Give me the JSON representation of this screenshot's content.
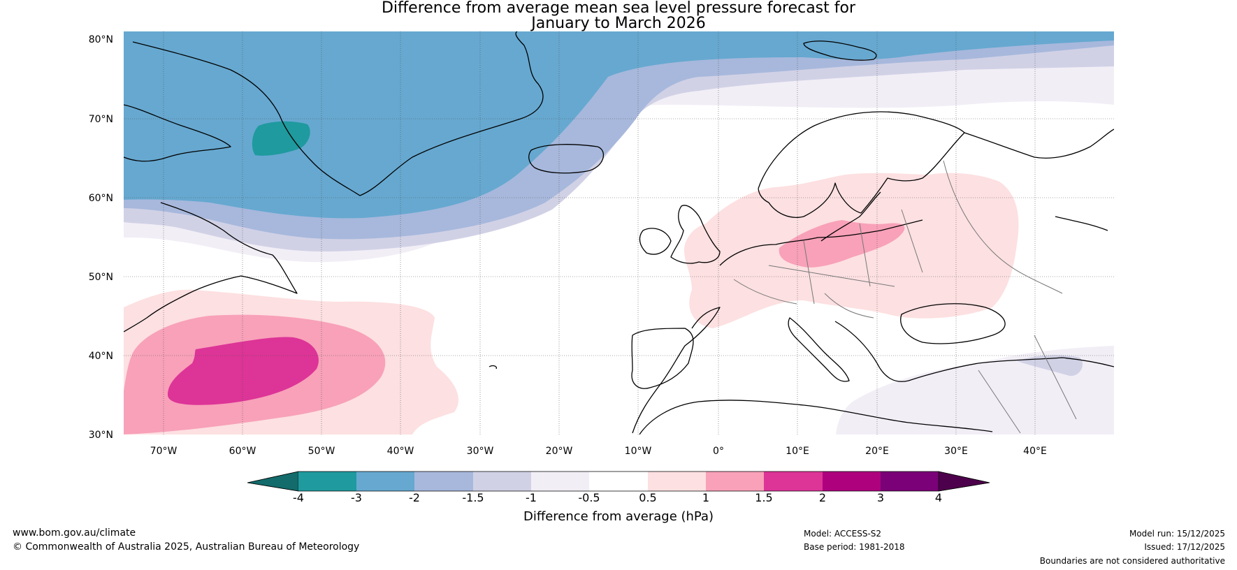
{
  "title_line1": "Difference from average mean sea level pressure forecast for",
  "title_line2": "January to March 2026",
  "lat_labels": [
    "30°N",
    "40°N",
    "50°N",
    "60°N",
    "70°N",
    "80°N"
  ],
  "lon_labels": [
    "70°W",
    "60°W",
    "50°W",
    "40°W",
    "30°W",
    "20°W",
    "10°W",
    "0°",
    "10°E",
    "20°E",
    "30°E",
    "40°E"
  ],
  "colorbar": {
    "label": "Difference from average (hPa)",
    "ticks": [
      "-4",
      "-3",
      "-2",
      "-1.5",
      "-1",
      "-0.5",
      "0.5",
      "1",
      "1.5",
      "2",
      "3",
      "4"
    ],
    "colors": [
      "#136b6b",
      "#1f9a9e",
      "#66a8d0",
      "#a7b8dc",
      "#d1d1e6",
      "#f2eef6",
      "#ffffff",
      "#fde0e1",
      "#f8a1b9",
      "#dd3497",
      "#ae017e",
      "#7a0177",
      "#4d004b"
    ]
  },
  "footer": {
    "website": "www.bom.gov.au/climate",
    "copyright": "© Commonwealth of Australia 2025, Australian Bureau of Meteorology",
    "model": "Model: ACCESS-S2",
    "base_period": "Base period: 1981-2018",
    "model_run": "Model run: 15/12/2025",
    "issued": "Issued: 17/12/2025",
    "disclaimer": "Boundaries are not considered authoritative"
  }
}
